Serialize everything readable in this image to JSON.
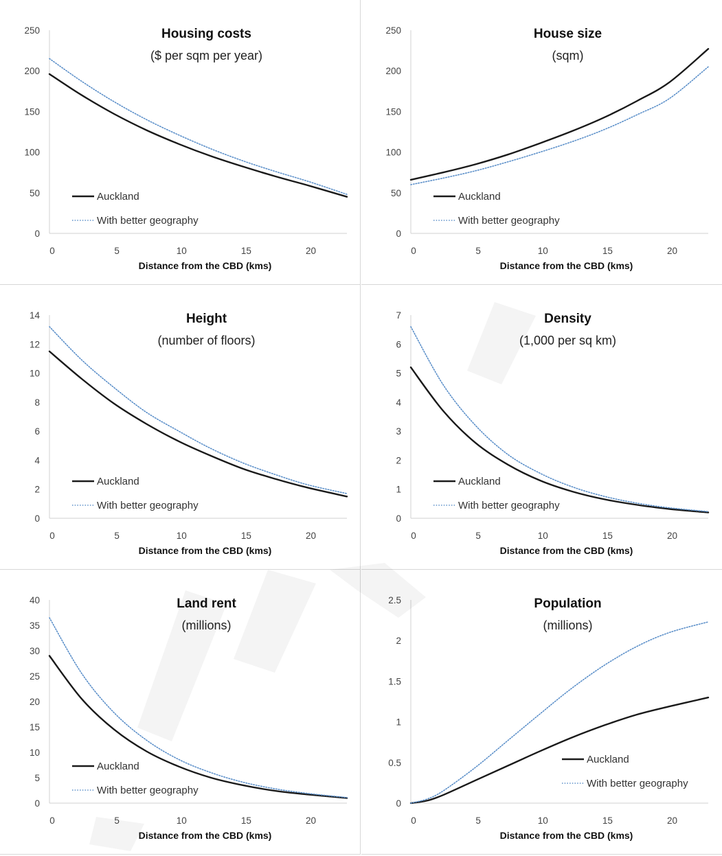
{
  "chart_data": [
    {
      "type": "line",
      "title": "Housing costs",
      "subtitle": "($ per sqm per year)",
      "xlabel": "Distance from the CBD (kms)",
      "ylabel": "",
      "xlim": [
        0,
        23
      ],
      "ylim": [
        0,
        250
      ],
      "xticks": [
        0,
        5,
        10,
        15,
        20
      ],
      "yticks": [
        0,
        50,
        100,
        150,
        200,
        250
      ],
      "legend": "bottom-left",
      "x": [
        0,
        2.5,
        5,
        7.5,
        10,
        12.5,
        15,
        17.5,
        20,
        23
      ],
      "series": [
        {
          "name": "Auckland",
          "style": "solid",
          "values": [
            196,
            170,
            147,
            127,
            110,
            95,
            82,
            70,
            59,
            45
          ]
        },
        {
          "name": "With better geography",
          "style": "dotted",
          "values": [
            215,
            187,
            162,
            140,
            121,
            104,
            89,
            76,
            64,
            48
          ]
        }
      ]
    },
    {
      "type": "line",
      "title": "House size",
      "subtitle": "(sqm)",
      "xlabel": "Distance from the CBD (kms)",
      "ylabel": "",
      "xlim": [
        0,
        23
      ],
      "ylim": [
        0,
        250
      ],
      "xticks": [
        0,
        5,
        10,
        15,
        20
      ],
      "yticks": [
        0,
        50,
        100,
        150,
        200,
        250
      ],
      "legend": "bottom-left",
      "x": [
        0,
        2.5,
        5,
        7.5,
        10,
        12.5,
        15,
        17.5,
        20,
        23
      ],
      "series": [
        {
          "name": "Auckland",
          "style": "solid",
          "values": [
            66,
            75,
            85,
            97,
            111,
            126,
            143,
            163,
            186,
            227
          ]
        },
        {
          "name": "With better geography",
          "style": "dotted",
          "values": [
            60,
            68,
            77,
            88,
            100,
            113,
            128,
            146,
            166,
            205
          ]
        }
      ]
    },
    {
      "type": "line",
      "title": "Height",
      "subtitle": "(number of floors)",
      "xlabel": "Distance from the CBD (kms)",
      "ylabel": "",
      "xlim": [
        0,
        23
      ],
      "ylim": [
        0,
        14
      ],
      "xticks": [
        0,
        5,
        10,
        15,
        20
      ],
      "yticks": [
        0,
        2,
        4,
        6,
        8,
        10,
        12,
        14
      ],
      "legend": "bottom-left",
      "x": [
        0,
        2.5,
        5,
        7.5,
        10,
        12.5,
        15,
        17.5,
        20,
        23
      ],
      "series": [
        {
          "name": "Auckland",
          "style": "solid",
          "values": [
            11.5,
            9.6,
            7.9,
            6.5,
            5.3,
            4.3,
            3.4,
            2.7,
            2.1,
            1.5
          ]
        },
        {
          "name": "With better geography",
          "style": "dotted",
          "values": [
            13.2,
            10.9,
            9.0,
            7.3,
            6.0,
            4.8,
            3.8,
            3.0,
            2.3,
            1.7
          ]
        }
      ]
    },
    {
      "type": "line",
      "title": "Density",
      "subtitle": "(1,000 per sq km)",
      "xlabel": "Distance from the CBD (kms)",
      "ylabel": "",
      "xlim": [
        0,
        23
      ],
      "ylim": [
        0,
        7
      ],
      "xticks": [
        0,
        5,
        10,
        15,
        20
      ],
      "yticks": [
        0,
        1,
        2,
        3,
        4,
        5,
        6,
        7
      ],
      "legend": "bottom-left",
      "x": [
        0,
        2.5,
        5,
        7.5,
        10,
        12.5,
        15,
        17.5,
        20,
        23
      ],
      "series": [
        {
          "name": "Auckland",
          "style": "solid",
          "values": [
            5.2,
            3.7,
            2.6,
            1.85,
            1.3,
            0.92,
            0.65,
            0.46,
            0.32,
            0.2
          ]
        },
        {
          "name": "With better geography",
          "style": "dotted",
          "values": [
            6.6,
            4.6,
            3.2,
            2.2,
            1.55,
            1.08,
            0.75,
            0.52,
            0.36,
            0.23
          ]
        }
      ]
    },
    {
      "type": "line",
      "title": "Land rent",
      "subtitle": "(millions)",
      "xlabel": "Distance from the CBD (kms)",
      "ylabel": "",
      "xlim": [
        0,
        23
      ],
      "ylim": [
        0,
        40
      ],
      "xticks": [
        0,
        5,
        10,
        15,
        20
      ],
      "yticks": [
        0,
        5,
        10,
        15,
        20,
        25,
        30,
        35,
        40
      ],
      "legend": "bottom-left",
      "x": [
        0,
        2.5,
        5,
        7.5,
        10,
        12.5,
        15,
        17.5,
        20,
        23
      ],
      "series": [
        {
          "name": "Auckland",
          "style": "solid",
          "values": [
            29,
            20.5,
            14.5,
            10.2,
            7.2,
            5.0,
            3.5,
            2.4,
            1.7,
            1.0
          ]
        },
        {
          "name": "With better geography",
          "style": "dotted",
          "values": [
            36.5,
            25.5,
            17.8,
            12.4,
            8.6,
            6.0,
            4.1,
            2.8,
            1.9,
            1.1
          ]
        }
      ]
    },
    {
      "type": "line",
      "title": "Population",
      "subtitle": "(millions)",
      "xlabel": "Distance from the CBD (kms)",
      "ylabel": "",
      "xlim": [
        0,
        23
      ],
      "ylim": [
        0,
        2.5
      ],
      "xticks": [
        0,
        5,
        10,
        15,
        20
      ],
      "yticks": [
        0,
        0.5,
        1,
        1.5,
        2,
        2.5
      ],
      "ytick_labels": [
        "0",
        "0.5",
        "1",
        "1.5",
        "2",
        "2.5"
      ],
      "legend": "bottom-right",
      "x": [
        0,
        1.25,
        2.5,
        5,
        7.5,
        10,
        12.5,
        15,
        17.5,
        20,
        23
      ],
      "series": [
        {
          "name": "Auckland",
          "style": "solid",
          "values": [
            0,
            0.03,
            0.1,
            0.28,
            0.46,
            0.64,
            0.81,
            0.96,
            1.09,
            1.19,
            1.3
          ]
        },
        {
          "name": "With better geography",
          "style": "dotted",
          "values": [
            0,
            0.05,
            0.15,
            0.44,
            0.77,
            1.1,
            1.42,
            1.7,
            1.93,
            2.1,
            2.23
          ]
        }
      ]
    }
  ],
  "colors": {
    "auckland": "#1a1a1a",
    "better_geography": "#5b8fc9",
    "axis": "#d0d0d0",
    "divider": "#d7d7d7"
  }
}
